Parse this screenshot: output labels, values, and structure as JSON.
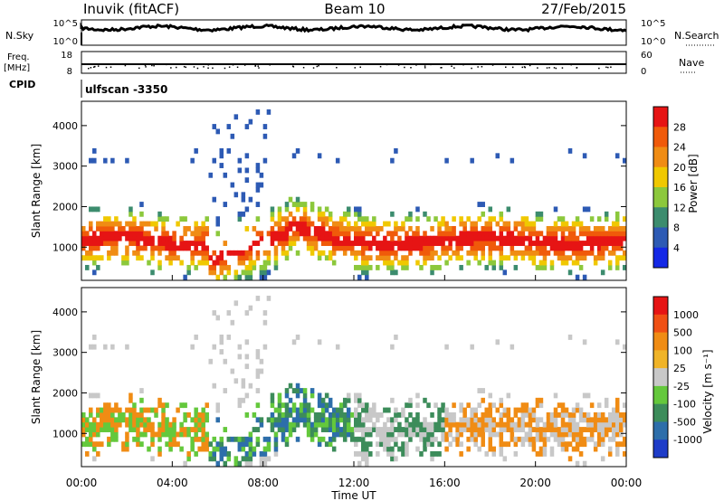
{
  "header": {
    "station": "Inuvik (fitACF)",
    "beam": "Beam 10",
    "date": "27/Feb/2015"
  },
  "top_panels": {
    "nsky_label": "N.Sky",
    "nsky_ticks": [
      "10^5",
      "10^0"
    ],
    "nsearch_label": "N.Search",
    "nsearch_ticks": [
      "10^5",
      "10^0"
    ],
    "freq_label_line1": "Freq.",
    "freq_label_line2": "[MHz]",
    "freq_ticks": [
      "18",
      "8"
    ],
    "nave_label": "Nave",
    "nave_ticks": [
      "60",
      "0"
    ],
    "cpid_label": "CPID",
    "cpid_value": "ulfscan -3350"
  },
  "chart_data": [
    {
      "type": "heatmap",
      "panel": "power",
      "ylabel": "Slant Range [km]",
      "ylim": [
        180,
        4600
      ],
      "yticks": [
        1000,
        2000,
        3000,
        4000
      ],
      "xlim_hours": [
        0,
        24
      ],
      "colorbar_label": "Power [dB]",
      "colorbar_ticks": [
        "4",
        "8",
        "12",
        "16",
        "20",
        "24",
        "28"
      ],
      "colorbar_colors": [
        "#1428e6",
        "#2d5ab4",
        "#3c8c6e",
        "#8cc83c",
        "#f0c800",
        "#f08c14",
        "#f05a0a",
        "#e61414"
      ]
    },
    {
      "type": "heatmap",
      "panel": "velocity",
      "ylabel": "Slant Range [km]",
      "ylim": [
        180,
        4600
      ],
      "yticks": [
        1000,
        2000,
        3000,
        4000
      ],
      "xlim_hours": [
        0,
        24
      ],
      "xticks": [
        "00:00",
        "04:00",
        "08:00",
        "12:00",
        "16:00",
        "20:00",
        "00:00"
      ],
      "xlabel": "Time UT",
      "colorbar_label": "Velocity [m s⁻¹]",
      "colorbar_ticks": [
        "1000",
        "500",
        "100",
        "25",
        "-25",
        "-100",
        "-500",
        "-1000"
      ],
      "colorbar_colors": [
        "#1e3cc8",
        "#2d6eaa",
        "#3c8c5a",
        "#64c83c",
        "#c8c8c8",
        "#f0b428",
        "#f08c14",
        "#f05014",
        "#e61414"
      ]
    }
  ]
}
